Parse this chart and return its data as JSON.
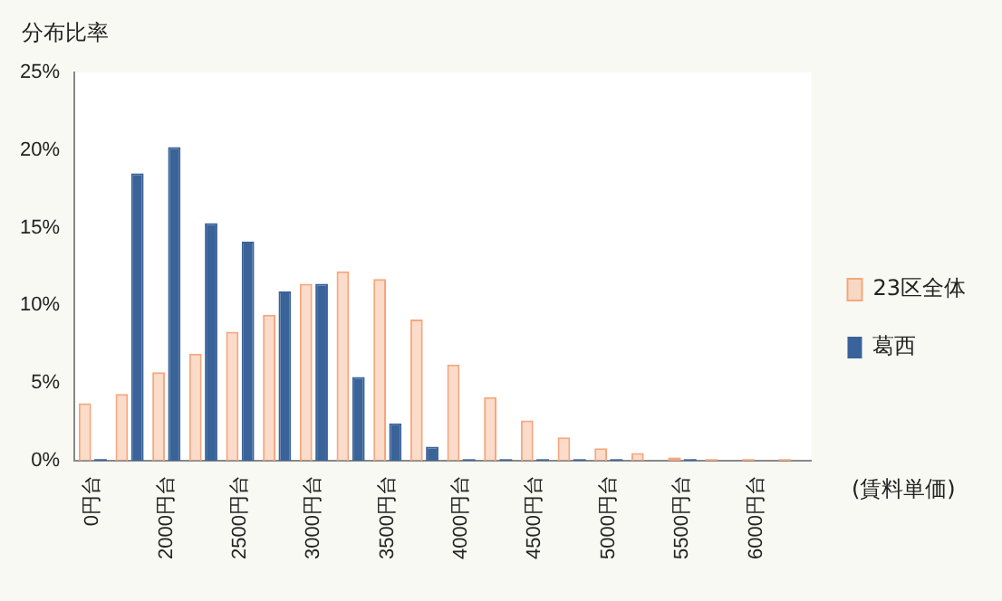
{
  "chart_data": {
    "type": "bar",
    "ylabel": "分布比率",
    "xlabel": "(賃料単価)",
    "categories": [
      "0円台",
      null,
      "2000円台",
      null,
      "2500円台",
      null,
      "3000円台",
      null,
      "3500円台",
      null,
      "4000円台",
      null,
      "4500円台",
      null,
      "5000円台",
      null,
      "5500円台",
      null,
      "6000円台",
      null
    ],
    "series": [
      {
        "name": "23区全体",
        "color": "#f6a77c",
        "values": [
          3.7,
          4.3,
          5.7,
          6.9,
          8.3,
          9.4,
          11.4,
          12.2,
          11.7,
          9.1,
          6.2,
          4.1,
          2.6,
          1.5,
          0.8,
          0.5,
          0.2,
          0.1,
          0.1,
          0.1
        ]
      },
      {
        "name": "葛西",
        "color": "#3a6399",
        "values": [
          0.1,
          18.5,
          20.2,
          15.3,
          14.1,
          10.9,
          11.4,
          5.4,
          2.4,
          0.9,
          0.1,
          0.1,
          0.1,
          0.1,
          0.1,
          0,
          0.1,
          0,
          0,
          0
        ]
      }
    ],
    "ylim": [
      0,
      25
    ],
    "yticks": [
      {
        "value": 0,
        "label": "0%"
      },
      {
        "value": 5,
        "label": "5%"
      },
      {
        "value": 10,
        "label": "10%"
      },
      {
        "value": 15,
        "label": "15%"
      },
      {
        "value": 20,
        "label": "20%"
      },
      {
        "value": 25,
        "label": "25%"
      }
    ],
    "grid": false,
    "legend": "right"
  }
}
